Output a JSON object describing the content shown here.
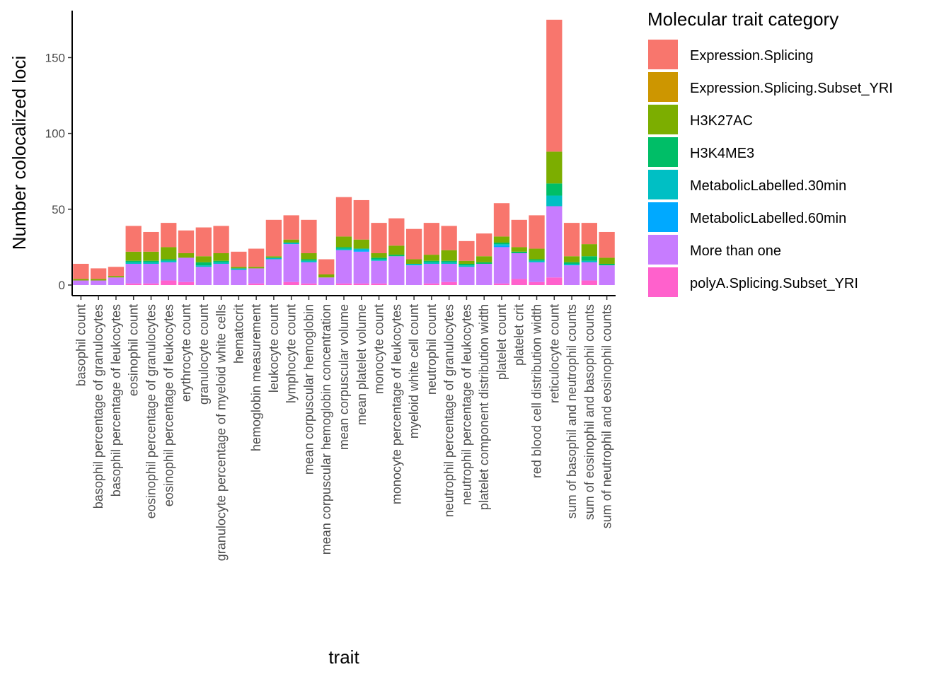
{
  "chart_data": {
    "type": "bar",
    "stacked": true,
    "xlabel": "trait",
    "ylabel": "Number colocalized loci",
    "ylim": [
      -7,
      181
    ],
    "yticks": [
      0,
      50,
      100,
      150
    ],
    "grid": false,
    "legend_position": "right",
    "legend_title": "Molecular trait category",
    "categories": [
      "basophil count",
      "basophil percentage of granulocytes",
      "basophil percentage of leukocytes",
      "eosinophil count",
      "eosinophil percentage of granulocytes",
      "eosinophil percentage of leukocytes",
      "erythrocyte count",
      "granulocyte count",
      "granulocyte percentage of myeloid white cells",
      "hematocrit",
      "hemoglobin measurement",
      "leukocyte count",
      "lymphocyte count",
      "mean corpuscular hemoglobin",
      "mean corpuscular hemoglobin concentration",
      "mean corpuscular volume",
      "mean platelet volume",
      "monocyte count",
      "monocyte percentage of leukocytes",
      "myeloid white cell count",
      "neutrophil count",
      "neutrophil percentage of granulocytes",
      "neutrophil percentage of leukocytes",
      "platelet component distribution width",
      "platelet count",
      "platelet crit",
      "red blood cell distribution width",
      "reticulocyte count",
      "sum of basophil and neutrophil counts",
      "sum of eosinophil and basophil counts",
      "sum of neutrophil and eosinophil counts"
    ],
    "series": [
      {
        "name": "polyA.Splicing.Subset_YRI",
        "color": "#FF61CC",
        "values": [
          0,
          0,
          0,
          1,
          1,
          3,
          2,
          0,
          0,
          0,
          1,
          0,
          2,
          1,
          0,
          1,
          1,
          1,
          0,
          0,
          1,
          2,
          0,
          0,
          1,
          4,
          2,
          5,
          0,
          3,
          0
        ]
      },
      {
        "name": "More than one",
        "color": "#C77CFF",
        "values": [
          3,
          3,
          5,
          13,
          13,
          12,
          16,
          12,
          14,
          10,
          10,
          17,
          25,
          14,
          5,
          22,
          21,
          15,
          19,
          13,
          13,
          12,
          12,
          14,
          24,
          17,
          13,
          47,
          13,
          12,
          13
        ]
      },
      {
        "name": "MetabolicLabelled.60min",
        "color": "#00A9FF",
        "values": [
          0,
          0,
          0,
          0,
          0,
          0,
          0,
          0,
          0,
          0,
          0,
          0,
          0,
          0,
          0,
          0,
          1,
          0,
          0,
          0,
          0,
          0,
          0,
          0,
          1,
          0,
          0,
          0,
          0,
          0,
          0
        ]
      },
      {
        "name": "MetabolicLabelled.30min",
        "color": "#00BFC4",
        "values": [
          0,
          0,
          0,
          1,
          1,
          1,
          0,
          1,
          1,
          1,
          0,
          1,
          1,
          1,
          0,
          1,
          1,
          1,
          0,
          1,
          1,
          1,
          1,
          0,
          1,
          0,
          1,
          7,
          1,
          1,
          0
        ]
      },
      {
        "name": "H3K4ME3",
        "color": "#00BE67",
        "values": [
          0,
          0,
          0,
          1,
          1,
          1,
          0,
          2,
          1,
          0,
          0,
          0,
          0,
          1,
          0,
          1,
          0,
          1,
          1,
          0,
          1,
          1,
          1,
          1,
          1,
          1,
          1,
          8,
          1,
          3,
          1
        ]
      },
      {
        "name": "H3K27AC",
        "color": "#7CAE00",
        "values": [
          1,
          1,
          1,
          6,
          6,
          8,
          3,
          4,
          5,
          1,
          1,
          1,
          2,
          4,
          2,
          7,
          6,
          3,
          6,
          3,
          4,
          7,
          2,
          4,
          4,
          3,
          7,
          21,
          4,
          8,
          4
        ]
      },
      {
        "name": "Expression.Splicing.Subset_YRI",
        "color": "#CD9600",
        "values": [
          0,
          0,
          0,
          0,
          0,
          0,
          0,
          0,
          0,
          0,
          0,
          0,
          0,
          0,
          0,
          0,
          0,
          0,
          0,
          0,
          0,
          0,
          0,
          0,
          0,
          0,
          0,
          0,
          0,
          0,
          0
        ]
      },
      {
        "name": "Expression.Splicing",
        "color": "#F8766D",
        "values": [
          10,
          7,
          6,
          17,
          13,
          16,
          15,
          19,
          18,
          10,
          12,
          24,
          16,
          22,
          10,
          26,
          26,
          20,
          18,
          20,
          21,
          16,
          13,
          15,
          22,
          18,
          22,
          87,
          22,
          14,
          17
        ]
      }
    ],
    "legend_order": [
      "Expression.Splicing",
      "Expression.Splicing.Subset_YRI",
      "H3K27AC",
      "H3K4ME3",
      "MetabolicLabelled.30min",
      "MetabolicLabelled.60min",
      "More than one",
      "polyA.Splicing.Subset_YRI"
    ]
  }
}
